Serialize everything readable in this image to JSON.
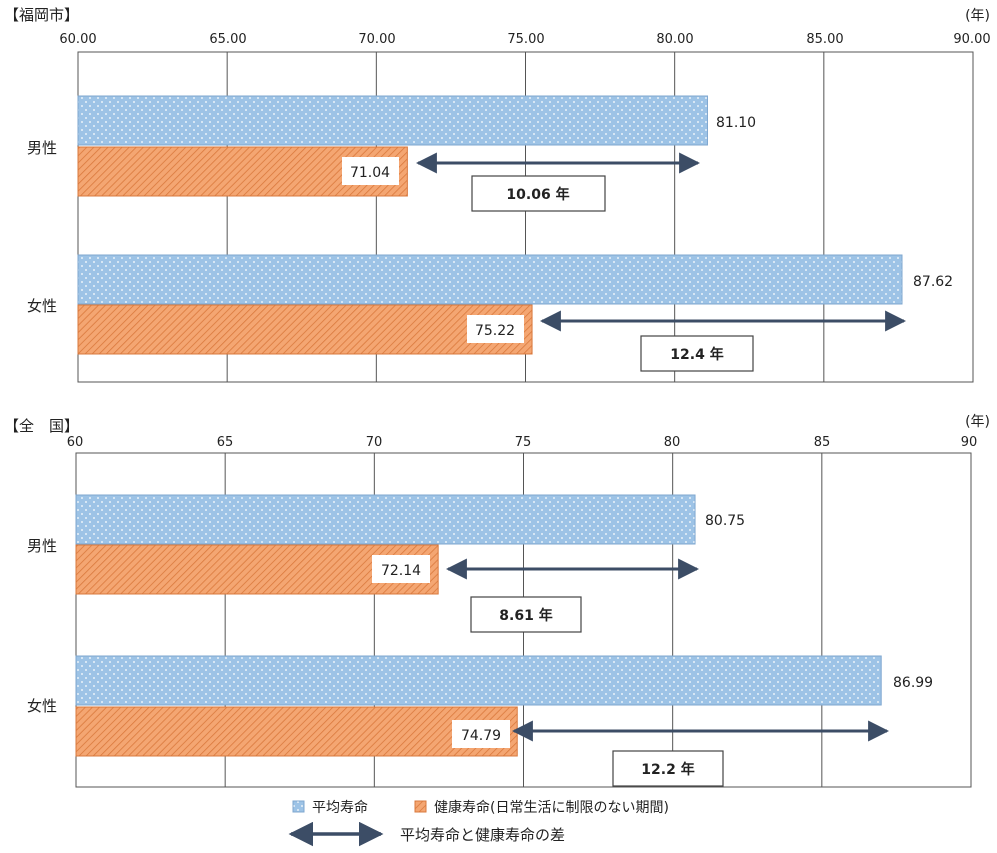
{
  "chart_data": [
    {
      "type": "bar",
      "region_label": "【福岡市】",
      "unit_label": "(年)",
      "ticks": [
        "60.00",
        "65.00",
        "70.00",
        "75.00",
        "80.00",
        "85.00",
        "90.00"
      ],
      "xlim": [
        60,
        90
      ],
      "categories": [
        "男性",
        "女性"
      ],
      "series": [
        {
          "key": "avg",
          "values": [
            81.1,
            87.62
          ],
          "labels": [
            "81.10",
            "87.62"
          ]
        },
        {
          "key": "healthy",
          "values": [
            71.04,
            75.22
          ],
          "labels": [
            "71.04",
            "75.22"
          ]
        }
      ],
      "gaps": [
        "10.06 年",
        "12.4 年"
      ]
    },
    {
      "type": "bar",
      "region_label": "【全　国】",
      "unit_label": "(年)",
      "ticks": [
        "60",
        "65",
        "70",
        "75",
        "80",
        "85",
        "90"
      ],
      "xlim": [
        60,
        90
      ],
      "categories": [
        "男性",
        "女性"
      ],
      "series": [
        {
          "key": "avg",
          "values": [
            80.75,
            86.99
          ],
          "labels": [
            "80.75",
            "86.99"
          ]
        },
        {
          "key": "healthy",
          "values": [
            72.14,
            74.79
          ],
          "labels": [
            "72.14",
            "74.79"
          ]
        }
      ],
      "gaps": [
        "8.61 年",
        "12.2 年"
      ]
    }
  ],
  "legend": {
    "avg_label": "平均寿命",
    "healthy_label": "健康寿命(日常生活に制限のない期間)",
    "gap_label": "平均寿命と健康寿命の差"
  },
  "colors": {
    "avg_fill": "#9dc3e6",
    "avg_stroke": "#7fa7cf",
    "healthy_fill": "#f4a672",
    "healthy_hatch": "#d9783c",
    "arrow": "#3c4d66",
    "grid": "#555555"
  }
}
